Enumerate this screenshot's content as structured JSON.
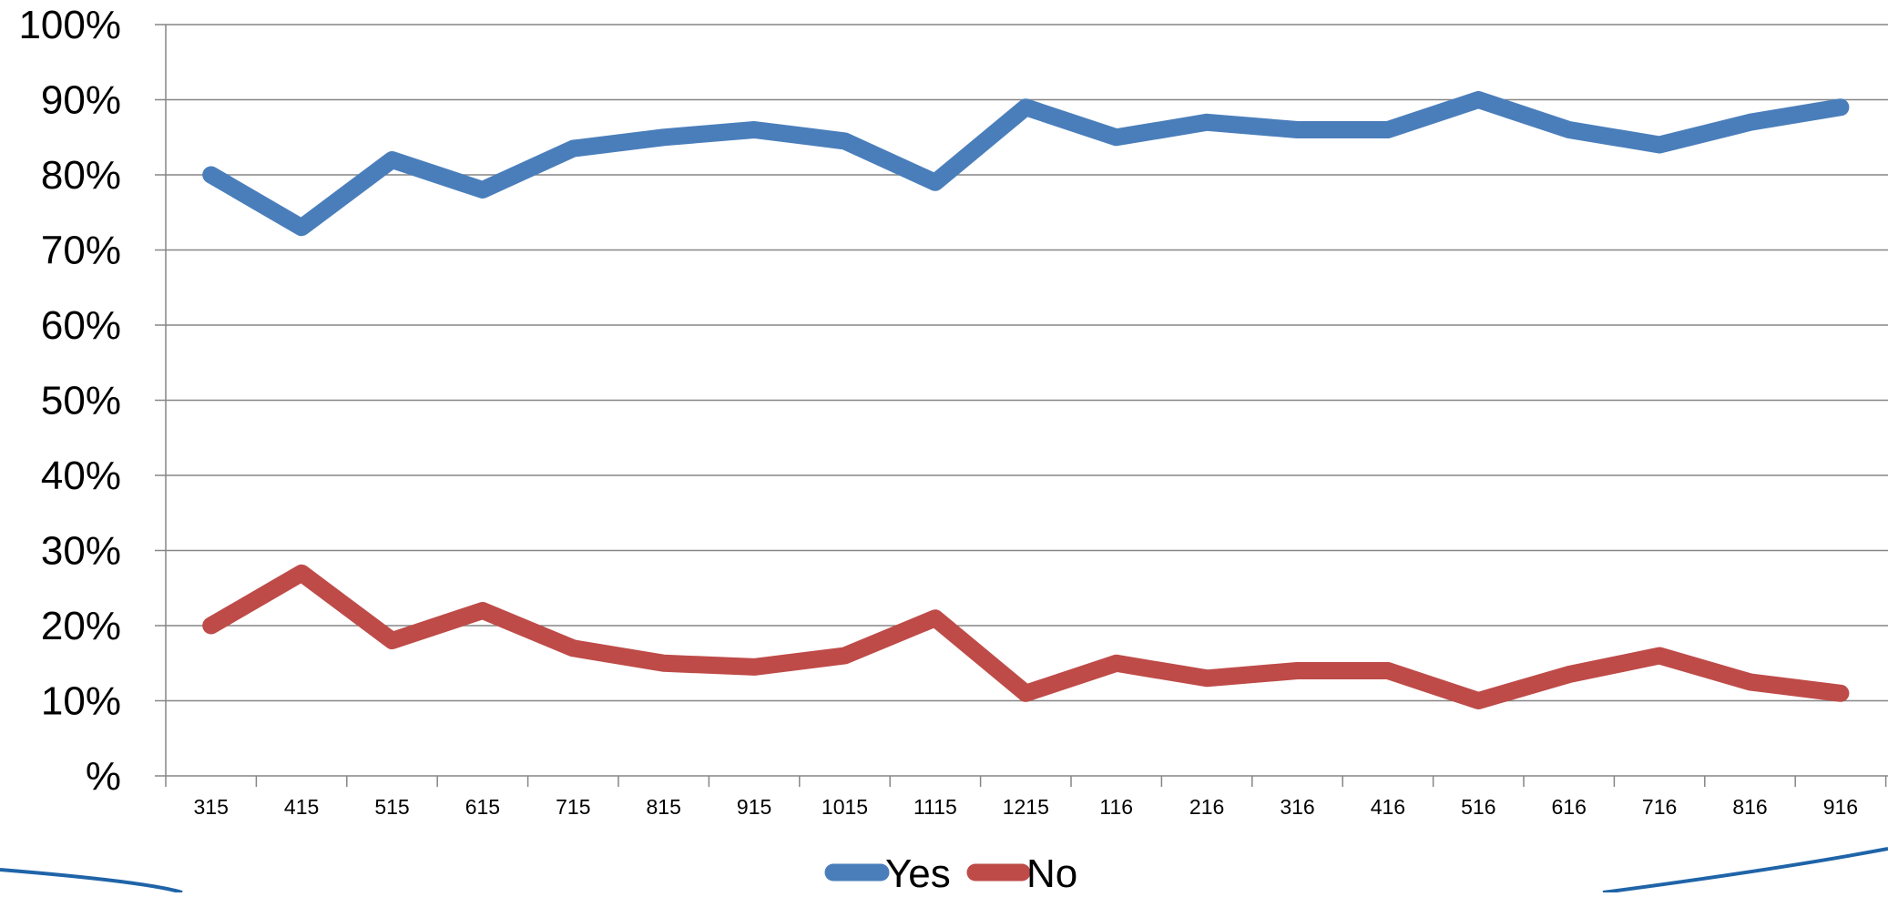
{
  "chart_data": {
    "type": "line",
    "title": "",
    "xlabel": "",
    "ylabel": "",
    "categories": [
      "315",
      "415",
      "515",
      "615",
      "715",
      "815",
      "915",
      "1015",
      "1115",
      "1215",
      "116",
      "216",
      "316",
      "416",
      "516",
      "616",
      "716",
      "816",
      "916"
    ],
    "y_ticks": [
      "%",
      "10%",
      "20%",
      "30%",
      "40%",
      "50%",
      "60%",
      "70%",
      "80%",
      "90%",
      "100%"
    ],
    "ylim": [
      0,
      100
    ],
    "grid": true,
    "legend_position": "bottom",
    "series": [
      {
        "name": "Yes",
        "color": "#4a7ebb",
        "values": [
          80,
          73,
          82,
          78,
          83.5,
          85,
          86,
          84.5,
          79,
          89,
          85,
          87,
          86,
          86,
          90,
          86,
          84,
          87,
          89
        ]
      },
      {
        "name": "No",
        "color": "#be4b48",
        "values": [
          20,
          27,
          18,
          22,
          17,
          15,
          14.5,
          16,
          21,
          11,
          15,
          13,
          14,
          14,
          10,
          13.5,
          16,
          12.5,
          11
        ]
      }
    ]
  },
  "decoration": {
    "swoosh_color": "#1f64a8"
  }
}
